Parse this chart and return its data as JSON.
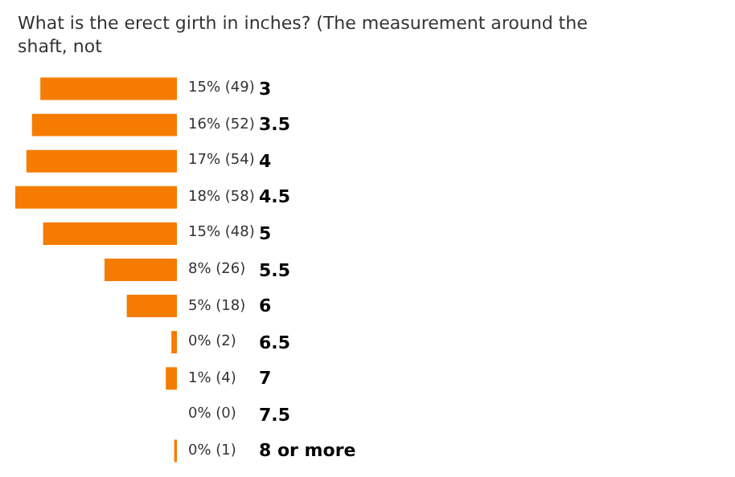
{
  "chart_data": {
    "type": "bar",
    "orientation": "horizontal",
    "title": "What is the erect girth in inches? (The measurement around the shaft, not",
    "categories": [
      "3",
      "3.5",
      "4",
      "4.5",
      "5",
      "5.5",
      "6",
      "6.5",
      "7",
      "7.5",
      "8 or more"
    ],
    "values": [
      49,
      52,
      54,
      58,
      48,
      26,
      18,
      2,
      4,
      0,
      1
    ],
    "value_labels": [
      "15% (49)",
      "16% (52)",
      "17% (54)",
      "18% (58)",
      "15% (48)",
      "8% (26)",
      "5% (18)",
      "0% (2)",
      "1% (4)",
      "0% (0)",
      "0% (1)"
    ],
    "color": "#f57c00"
  }
}
